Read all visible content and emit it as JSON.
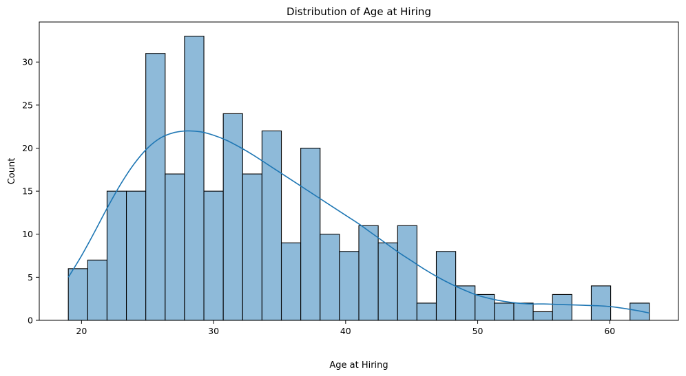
{
  "chart_data": {
    "type": "bar",
    "subtype": "histogram-with-kde",
    "title": "Distribution of Age at Hiring",
    "xlabel": "Age at Hiring",
    "ylabel": "Count",
    "xlim": [
      16.8,
      65.2
    ],
    "ylim": [
      0,
      34.65
    ],
    "xticks": [
      20,
      30,
      40,
      50,
      60
    ],
    "yticks": [
      0,
      5,
      10,
      15,
      20,
      25,
      30
    ],
    "bins": {
      "start": 19,
      "width": 1.4667,
      "counts": [
        6,
        7,
        15,
        15,
        31,
        17,
        33,
        15,
        24,
        17,
        22,
        9,
        20,
        10,
        8,
        11,
        9,
        11,
        2,
        8,
        4,
        3,
        2,
        2,
        1,
        3,
        0,
        4,
        0,
        2
      ]
    },
    "kde": {
      "x": [
        19,
        20,
        21,
        22,
        23,
        24,
        25,
        26,
        27,
        28,
        29,
        30,
        31,
        32,
        33,
        34,
        35,
        36,
        37,
        38,
        39,
        40,
        41,
        42,
        43,
        44,
        45,
        46,
        47,
        48,
        49,
        50,
        51,
        52,
        53,
        54,
        55,
        56,
        57,
        58,
        59,
        60,
        61,
        62,
        63
      ],
      "y": [
        5.0,
        7.5,
        10.3,
        13.2,
        15.9,
        18.2,
        20.0,
        21.2,
        21.8,
        22.0,
        21.9,
        21.5,
        20.9,
        20.1,
        19.2,
        18.2,
        17.2,
        16.2,
        15.2,
        14.2,
        13.2,
        12.2,
        11.2,
        10.1,
        9.0,
        7.9,
        6.9,
        5.9,
        5.0,
        4.2,
        3.5,
        2.9,
        2.5,
        2.2,
        2.0,
        1.9,
        1.9,
        1.85,
        1.8,
        1.75,
        1.7,
        1.6,
        1.4,
        1.15,
        0.85
      ]
    },
    "colors": {
      "bar_fill": "#8ebad9",
      "bar_edge": "#000000",
      "kde_line": "#1f77b4"
    },
    "grid": false,
    "legend": "none"
  }
}
